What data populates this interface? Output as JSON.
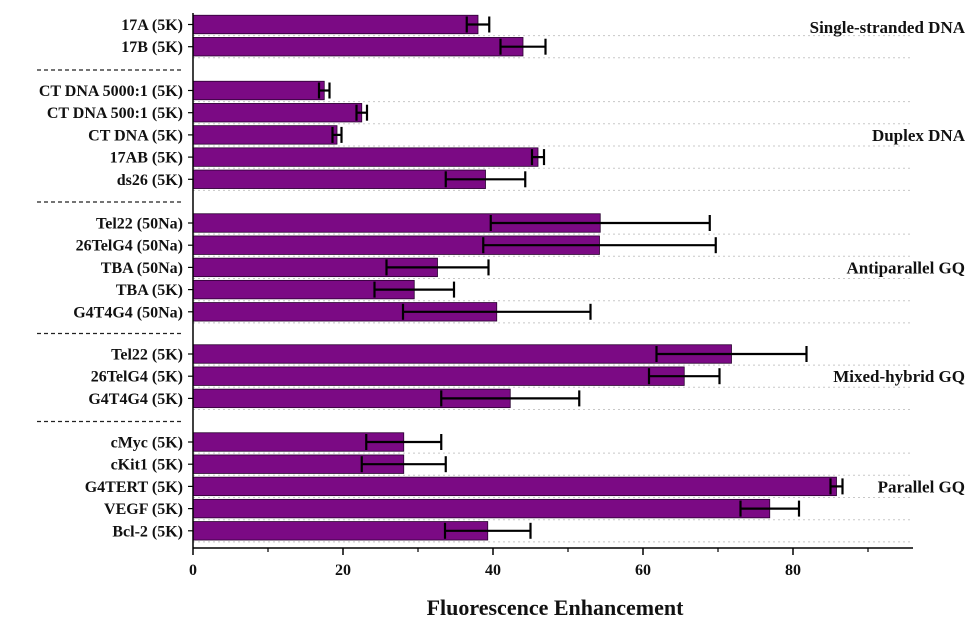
{
  "chart_data": {
    "type": "bar",
    "orientation": "horizontal",
    "xlabel": "Fluorescence Enhancement",
    "xlim": [
      0,
      96
    ],
    "xticks": [
      "0",
      "20",
      "40",
      "60",
      "80"
    ],
    "bar_color": "#7b0a84",
    "grid": "dotted horizontal",
    "groups": [
      {
        "label": "Single-stranded DNA",
        "bars": [
          {
            "category": "17A (5K)",
            "value": 38,
            "error": 1.5
          },
          {
            "category": "17B (5K)",
            "value": 44,
            "error": 3
          }
        ]
      },
      {
        "label": "Duplex DNA",
        "bars": [
          {
            "category": "CT DNA 5000:1 (5K)",
            "value": 17.5,
            "error": 0.7
          },
          {
            "category": "CT DNA 500:1 (5K)",
            "value": 22.5,
            "error": 0.7
          },
          {
            "category": "CT DNA (5K)",
            "value": 19.2,
            "error": 0.6
          },
          {
            "category": "17AB (5K)",
            "value": 46,
            "error": 0.8
          },
          {
            "category": "ds26 (5K)",
            "value": 39,
            "error": 5.3
          }
        ]
      },
      {
        "label": "Antiparallel GQ",
        "bars": [
          {
            "category": "Tel22 (50Na)",
            "value": 54.3,
            "error": 14.6
          },
          {
            "category": "26TelG4 (50Na)",
            "value": 54.2,
            "error": 15.5
          },
          {
            "category": "TBA (50Na)",
            "value": 32.6,
            "error": 6.8
          },
          {
            "category": "TBA (5K)",
            "value": 29.5,
            "error": 5.3
          },
          {
            "category": "G4T4G4 (50Na)",
            "value": 40.5,
            "error": 12.5
          }
        ]
      },
      {
        "label": "Mixed-hybrid GQ",
        "bars": [
          {
            "category": "Tel22 (5K)",
            "value": 71.8,
            "error": 10
          },
          {
            "category": "26TelG4 (5K)",
            "value": 65.5,
            "error": 4.7
          },
          {
            "category": "G4T4G4 (5K)",
            "value": 42.3,
            "error": 9.2
          }
        ]
      },
      {
        "label": "Parallel GQ",
        "bars": [
          {
            "category": "cMyc (5K)",
            "value": 28.1,
            "error": 5
          },
          {
            "category": "cKit1 (5K)",
            "value": 28.1,
            "error": 5.6
          },
          {
            "category": "G4TERT (5K)",
            "value": 85.8,
            "error": 0.8
          },
          {
            "category": "VEGF (5K)",
            "value": 76.9,
            "error": 3.9
          },
          {
            "category": "Bcl-2 (5K)",
            "value": 39.3,
            "error": 5.7
          }
        ]
      }
    ]
  }
}
